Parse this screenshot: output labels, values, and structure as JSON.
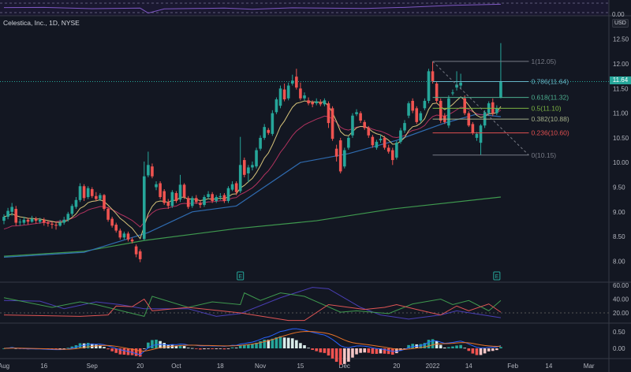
{
  "header": {
    "title": "Celestica, Inc., 1D, NYSE",
    "currency": "USD"
  },
  "colors": {
    "up": "#26a69a",
    "down": "#ef5350",
    "background": "#131722",
    "ema_fast": "#d6c37a",
    "ema_slow": "#b2335f",
    "ma_blue": "#2f6bb0",
    "ma_green": "#3f9a4f"
  },
  "price_axis": {
    "labels": [
      "12.50",
      "12.00",
      "11.50",
      "11.00",
      "10.50",
      "10.00",
      "9.50",
      "9.00",
      "8.50",
      "8.00"
    ],
    "values": [
      12.5,
      12,
      11.5,
      11,
      10.5,
      10,
      9.5,
      9,
      8.5,
      8
    ],
    "last_price": "11.64",
    "last_value": 11.64
  },
  "time_axis": [
    {
      "label": "Aug",
      "bar": 0
    },
    {
      "label": "16",
      "bar": 10
    },
    {
      "label": "Sep",
      "bar": 22
    },
    {
      "label": "20",
      "bar": 34
    },
    {
      "label": "Oct",
      "bar": 43
    },
    {
      "label": "18",
      "bar": 54
    },
    {
      "label": "Nov",
      "bar": 64
    },
    {
      "label": "15",
      "bar": 74
    },
    {
      "label": "Dec",
      "bar": 85
    },
    {
      "label": "20",
      "bar": 98
    },
    {
      "label": "2022",
      "bar": 107
    },
    {
      "label": "14",
      "bar": 116
    },
    {
      "label": "Feb",
      "bar": 127
    },
    {
      "label": "14",
      "bar": 136
    },
    {
      "label": "Mar",
      "bar": 146
    }
  ],
  "chart_data": {
    "type": "candlestick",
    "candles_ohlc": [
      [
        8.82,
        8.95,
        8.75,
        8.9
      ],
      [
        8.9,
        9.08,
        8.85,
        9.02
      ],
      [
        9.0,
        9.18,
        8.92,
        9.1
      ],
      [
        9.06,
        9.12,
        8.72,
        8.78
      ],
      [
        8.8,
        8.86,
        8.72,
        8.8
      ],
      [
        8.78,
        8.9,
        8.74,
        8.84
      ],
      [
        8.84,
        8.88,
        8.74,
        8.8
      ],
      [
        8.8,
        8.92,
        8.78,
        8.86
      ],
      [
        8.86,
        8.9,
        8.76,
        8.82
      ],
      [
        8.8,
        8.88,
        8.76,
        8.84
      ],
      [
        8.84,
        8.88,
        8.72,
        8.78
      ],
      [
        8.78,
        8.82,
        8.7,
        8.76
      ],
      [
        8.76,
        8.8,
        8.66,
        8.74
      ],
      [
        8.74,
        8.8,
        8.64,
        8.72
      ],
      [
        8.72,
        8.84,
        8.7,
        8.78
      ],
      [
        8.78,
        8.9,
        8.74,
        8.84
      ],
      [
        8.84,
        9.0,
        8.8,
        8.96
      ],
      [
        8.96,
        9.16,
        8.92,
        9.12
      ],
      [
        9.1,
        9.3,
        9.06,
        9.24
      ],
      [
        9.24,
        9.58,
        9.2,
        9.52
      ],
      [
        9.52,
        9.56,
        9.22,
        9.28
      ],
      [
        9.3,
        9.52,
        9.26,
        9.48
      ],
      [
        9.46,
        9.5,
        9.28,
        9.32
      ],
      [
        9.32,
        9.4,
        9.22,
        9.26
      ],
      [
        9.26,
        9.38,
        9.22,
        9.34
      ],
      [
        9.34,
        9.36,
        9.02,
        9.06
      ],
      [
        9.06,
        9.1,
        8.8,
        8.84
      ],
      [
        8.86,
        8.9,
        8.68,
        8.72
      ],
      [
        8.74,
        8.78,
        8.58,
        8.62
      ],
      [
        8.62,
        8.66,
        8.44,
        8.48
      ],
      [
        8.48,
        8.6,
        8.44,
        8.56
      ],
      [
        8.56,
        8.6,
        8.4,
        8.44
      ],
      [
        8.44,
        8.48,
        8.36,
        8.4
      ],
      [
        8.3,
        8.34,
        8.08,
        8.14
      ],
      [
        8.2,
        8.24,
        7.98,
        8.04
      ],
      [
        8.45,
        10.02,
        8.42,
        9.72
      ],
      [
        9.74,
        10.22,
        9.7,
        9.95
      ],
      [
        9.92,
        9.98,
        9.68,
        9.72
      ],
      [
        9.5,
        9.62,
        9.44,
        9.56
      ],
      [
        9.58,
        9.62,
        9.26,
        9.3
      ],
      [
        9.42,
        9.46,
        9.14,
        9.18
      ],
      [
        9.2,
        9.26,
        9.06,
        9.12
      ],
      [
        9.12,
        9.44,
        9.08,
        9.4
      ],
      [
        9.38,
        9.42,
        9.18,
        9.22
      ],
      [
        9.25,
        9.75,
        9.2,
        9.55
      ],
      [
        9.55,
        9.58,
        9.26,
        9.3
      ],
      [
        9.28,
        9.32,
        9.06,
        9.1
      ],
      [
        9.12,
        9.32,
        9.08,
        9.28
      ],
      [
        9.28,
        9.34,
        9.16,
        9.2
      ],
      [
        9.18,
        9.24,
        9.08,
        9.14
      ],
      [
        9.14,
        9.34,
        9.1,
        9.3
      ],
      [
        9.3,
        9.42,
        9.26,
        9.36
      ],
      [
        9.36,
        9.4,
        9.18,
        9.22
      ],
      [
        9.22,
        9.34,
        9.18,
        9.3
      ],
      [
        9.3,
        9.38,
        9.24,
        9.32
      ],
      [
        9.34,
        9.38,
        9.18,
        9.22
      ],
      [
        9.22,
        9.52,
        9.18,
        9.48
      ],
      [
        9.45,
        9.62,
        9.42,
        9.56
      ],
      [
        9.58,
        9.62,
        9.34,
        9.4
      ],
      [
        9.42,
        10.52,
        9.38,
        9.95
      ],
      [
        10.05,
        10.1,
        9.7,
        9.75
      ],
      [
        9.78,
        9.95,
        9.6,
        9.9
      ],
      [
        9.9,
        10.02,
        9.84,
        9.95
      ],
      [
        9.92,
        10.3,
        9.88,
        10.25
      ],
      [
        10.28,
        10.55,
        10.24,
        10.5
      ],
      [
        10.5,
        10.78,
        10.46,
        10.72
      ],
      [
        10.66,
        10.7,
        10.56,
        10.6
      ],
      [
        10.58,
        11.06,
        10.54,
        11.0
      ],
      [
        11.02,
        11.32,
        10.98,
        11.28
      ],
      [
        11.15,
        11.56,
        11.1,
        11.5
      ],
      [
        11.48,
        11.6,
        11.24,
        11.28
      ],
      [
        11.3,
        11.62,
        11.26,
        11.56
      ],
      [
        11.6,
        11.78,
        11.56,
        11.66
      ],
      [
        11.74,
        11.9,
        11.48,
        11.52
      ],
      [
        11.5,
        11.62,
        11.26,
        11.3
      ],
      [
        11.3,
        11.42,
        11.26,
        11.36
      ],
      [
        11.26,
        11.32,
        11.16,
        11.2
      ],
      [
        11.22,
        11.26,
        11.12,
        11.18
      ],
      [
        11.2,
        11.3,
        11.16,
        11.24
      ],
      [
        11.22,
        11.28,
        11.14,
        11.18
      ],
      [
        11.18,
        11.3,
        11.14,
        11.26
      ],
      [
        11.2,
        11.24,
        10.7,
        10.8
      ],
      [
        11.1,
        11.14,
        10.44,
        10.48
      ],
      [
        10.28,
        10.36,
        10.02,
        10.12
      ],
      [
        10.45,
        10.5,
        9.78,
        9.82
      ],
      [
        9.92,
        10.3,
        9.88,
        10.25
      ],
      [
        10.3,
        10.54,
        10.26,
        10.5
      ],
      [
        10.55,
        11.0,
        10.5,
        10.95
      ],
      [
        10.98,
        11.08,
        10.94,
        11.02
      ],
      [
        11.0,
        11.04,
        10.8,
        10.85
      ],
      [
        10.82,
        10.86,
        10.66,
        10.7
      ],
      [
        10.7,
        10.74,
        10.5,
        10.55
      ],
      [
        10.52,
        10.56,
        10.3,
        10.35
      ],
      [
        10.3,
        10.46,
        10.26,
        10.42
      ],
      [
        10.45,
        10.56,
        10.4,
        10.48
      ],
      [
        10.5,
        10.54,
        10.26,
        10.3
      ],
      [
        10.3,
        10.36,
        10.18,
        10.22
      ],
      [
        10.25,
        10.3,
        9.95,
        10.05
      ],
      [
        10.1,
        10.44,
        10.06,
        10.4
      ],
      [
        10.42,
        10.7,
        10.38,
        10.65
      ],
      [
        10.65,
        10.86,
        10.6,
        10.8
      ],
      [
        10.95,
        11.24,
        10.9,
        11.2
      ],
      [
        11.25,
        11.3,
        11.0,
        11.05
      ],
      [
        11.1,
        11.14,
        10.78,
        10.82
      ],
      [
        10.85,
        11.04,
        10.8,
        11.0
      ],
      [
        11.1,
        11.3,
        11.06,
        11.25
      ],
      [
        11.25,
        11.9,
        11.2,
        11.85
      ],
      [
        11.85,
        12.05,
        11.6,
        11.65
      ],
      [
        11.6,
        11.64,
        11.2,
        11.25
      ],
      [
        11.25,
        11.3,
        10.8,
        10.85
      ],
      [
        10.95,
        11.0,
        10.78,
        10.82
      ],
      [
        10.75,
        11.36,
        10.7,
        11.3
      ],
      [
        11.4,
        11.48,
        11.36,
        11.42
      ],
      [
        11.52,
        11.85,
        11.46,
        11.58
      ],
      [
        11.56,
        11.8,
        11.5,
        11.62
      ],
      [
        11.3,
        11.36,
        10.96,
        11.0
      ],
      [
        11.0,
        11.04,
        10.72,
        10.75
      ],
      [
        10.78,
        10.82,
        10.56,
        10.6
      ],
      [
        10.5,
        10.62,
        10.44,
        10.58
      ],
      [
        10.4,
        10.78,
        10.15,
        10.75
      ],
      [
        10.75,
        11.06,
        10.7,
        11.02
      ],
      [
        11.0,
        11.24,
        10.96,
        11.2
      ],
      [
        11.22,
        11.3,
        10.94,
        11.0
      ],
      [
        11.0,
        11.16,
        10.96,
        11.1
      ],
      [
        11.32,
        12.42,
        11.3,
        11.64
      ]
    ],
    "ma_blue": [
      [
        0,
        8.08
      ],
      [
        20,
        8.18
      ],
      [
        36,
        8.58
      ],
      [
        47,
        9.0
      ],
      [
        58,
        9.12
      ],
      [
        74,
        10.0
      ],
      [
        86,
        10.18
      ],
      [
        98,
        10.45
      ],
      [
        110,
        10.8
      ],
      [
        118,
        10.98
      ],
      [
        124,
        10.93
      ]
    ],
    "ma_green": [
      [
        0,
        8.1
      ],
      [
        20,
        8.2
      ],
      [
        35,
        8.42
      ],
      [
        58,
        8.66
      ],
      [
        78,
        8.82
      ],
      [
        97,
        9.06
      ],
      [
        124,
        9.3
      ]
    ],
    "ylim": [
      7.8,
      12.9
    ]
  },
  "fibonacci": {
    "start_bar": 107,
    "end_bar": 131,
    "levels": [
      {
        "ratio": 1,
        "price": 12.05,
        "label": "1(12.05)",
        "color": "#787b86"
      },
      {
        "ratio": 0.786,
        "price": 11.64,
        "label": "0.786(11.64)",
        "color": "#64b5c6"
      },
      {
        "ratio": 0.618,
        "price": 11.32,
        "label": "0.618(11.32)",
        "color": "#4caf8f"
      },
      {
        "ratio": 0.5,
        "price": 11.1,
        "label": "0.5(11.10)",
        "color": "#7cb342"
      },
      {
        "ratio": 0.382,
        "price": 10.88,
        "label": "0.382(10.88)",
        "color": "#a5b08a"
      },
      {
        "ratio": 0.236,
        "price": 10.6,
        "label": "0.236(10.60)",
        "color": "#e04f4f"
      },
      {
        "ratio": 0,
        "price": 10.15,
        "label": "0(10.15)",
        "color": "#787b86"
      }
    ]
  },
  "earnings_markers": [
    {
      "bar": 59,
      "label": "E"
    },
    {
      "bar": 123,
      "label": "E"
    }
  ],
  "top_indicator": {
    "axis_label": "0.00",
    "points": [
      [
        0,
        60
      ],
      [
        10,
        62
      ],
      [
        22,
        50
      ],
      [
        34,
        55
      ],
      [
        36,
        10
      ],
      [
        40,
        48
      ],
      [
        55,
        55
      ],
      [
        62,
        45
      ],
      [
        72,
        58
      ],
      [
        90,
        52
      ],
      [
        100,
        62
      ],
      [
        112,
        80
      ],
      [
        124,
        90
      ]
    ]
  },
  "dmi": {
    "axis_labels": [
      "60.00",
      "40.00",
      "20.00"
    ],
    "axis_values": [
      60,
      40,
      20
    ],
    "green": [
      [
        0,
        42
      ],
      [
        12,
        28
      ],
      [
        19,
        36
      ],
      [
        23,
        32
      ],
      [
        35,
        15
      ],
      [
        37,
        44
      ],
      [
        46,
        28
      ],
      [
        52,
        36
      ],
      [
        59,
        32
      ],
      [
        60,
        49
      ],
      [
        64,
        38
      ],
      [
        69,
        49
      ],
      [
        75,
        44
      ],
      [
        84,
        21
      ],
      [
        88,
        23
      ],
      [
        96,
        19
      ],
      [
        102,
        33
      ],
      [
        109,
        40
      ],
      [
        112,
        32
      ],
      [
        116,
        38
      ],
      [
        121,
        23
      ],
      [
        124,
        38
      ]
    ],
    "red": [
      [
        0,
        17
      ],
      [
        19,
        15
      ],
      [
        26,
        17
      ],
      [
        28,
        30
      ],
      [
        32,
        29
      ],
      [
        35,
        40
      ],
      [
        37,
        23
      ],
      [
        46,
        28
      ],
      [
        59,
        20
      ],
      [
        71,
        9
      ],
      [
        75,
        9
      ],
      [
        81,
        32
      ],
      [
        90,
        25
      ],
      [
        95,
        28
      ],
      [
        98,
        32
      ],
      [
        103,
        25
      ],
      [
        109,
        17
      ],
      [
        113,
        30
      ],
      [
        116,
        23
      ],
      [
        121,
        33
      ],
      [
        124,
        21
      ]
    ],
    "blue": [
      [
        0,
        38
      ],
      [
        9,
        37
      ],
      [
        15,
        26
      ],
      [
        23,
        36
      ],
      [
        29,
        32
      ],
      [
        35,
        26
      ],
      [
        46,
        26
      ],
      [
        53,
        15
      ],
      [
        59,
        19
      ],
      [
        69,
        42
      ],
      [
        77,
        57
      ],
      [
        81,
        55
      ],
      [
        89,
        28
      ],
      [
        94,
        17
      ],
      [
        101,
        11
      ],
      [
        109,
        17
      ],
      [
        113,
        23
      ],
      [
        124,
        13
      ]
    ]
  },
  "macd": {
    "axis_labels": [
      "0.50",
      "0.00"
    ],
    "axis_values": [
      0.5,
      0
    ]
  }
}
